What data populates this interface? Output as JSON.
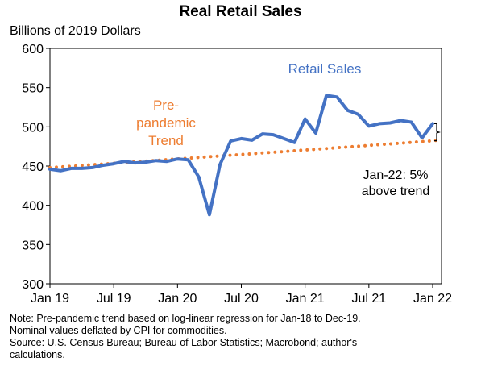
{
  "chart_data": {
    "type": "line",
    "title": "Real Retail Sales",
    "ylabel": "Billions of 2019 Dollars",
    "xlabel": "",
    "ylim": [
      300,
      600
    ],
    "yticks": [
      300,
      350,
      400,
      450,
      500,
      550,
      600
    ],
    "x_tick_labels": [
      "Jan 19",
      "Jul 19",
      "Jan 20",
      "Jul 20",
      "Jan 21",
      "Jul 21",
      "Jan 22"
    ],
    "x": [
      "Jan 19",
      "Feb 19",
      "Mar 19",
      "Apr 19",
      "May 19",
      "Jun 19",
      "Jul 19",
      "Aug 19",
      "Sep 19",
      "Oct 19",
      "Nov 19",
      "Dec 19",
      "Jan 20",
      "Feb 20",
      "Mar 20",
      "Apr 20",
      "May 20",
      "Jun 20",
      "Jul 20",
      "Aug 20",
      "Sep 20",
      "Oct 20",
      "Nov 20",
      "Dec 20",
      "Jan 21",
      "Feb 21",
      "Mar 21",
      "Apr 21",
      "May 21",
      "Jun 21",
      "Jul 21",
      "Aug 21",
      "Sep 21",
      "Oct 21",
      "Nov 21",
      "Dec 21",
      "Jan 22"
    ],
    "series": [
      {
        "name": "Retail Sales",
        "color": "#4472C4",
        "style": "solid",
        "values": [
          446,
          444,
          447,
          447,
          448,
          451,
          453,
          456,
          454,
          455,
          457,
          456,
          459,
          458,
          436,
          388,
          452,
          482,
          485,
          483,
          491,
          490,
          485,
          480,
          510,
          492,
          540,
          538,
          521,
          516,
          501,
          504,
          505,
          508,
          506,
          486,
          504
        ]
      },
      {
        "name": "Pre-pandemic Trend",
        "color": "#ED7D31",
        "style": "dotted",
        "values": [
          448.0,
          448.9,
          449.8,
          450.7,
          451.7,
          452.6,
          453.5,
          454.4,
          455.4,
          456.3,
          457.2,
          458.2,
          459.1,
          460.0,
          461.0,
          461.9,
          462.8,
          463.8,
          464.7,
          465.7,
          466.7,
          467.6,
          468.5,
          469.5,
          470.5,
          471.4,
          472.4,
          473.4,
          474.3,
          475.3,
          476.3,
          477.3,
          478.2,
          479.2,
          480.2,
          481.2,
          482.2
        ]
      }
    ],
    "annotations": {
      "retail_label": "Retail Sales",
      "trend_label_lines": [
        "Pre-",
        "pandemic",
        "Trend"
      ],
      "gap_label_lines": [
        "Jan-22: 5%",
        "above trend"
      ]
    },
    "grid": false,
    "legend": "none"
  },
  "notes": [
    "Note: Pre-pandemic trend based on log-linear regression for Jan-18 to Dec-19.",
    "Nominal values deflated by CPI for commodities.",
    "Source: U.S. Census Bureau; Bureau of Labor Statistics; Macrobond; author's",
    "calculations."
  ]
}
